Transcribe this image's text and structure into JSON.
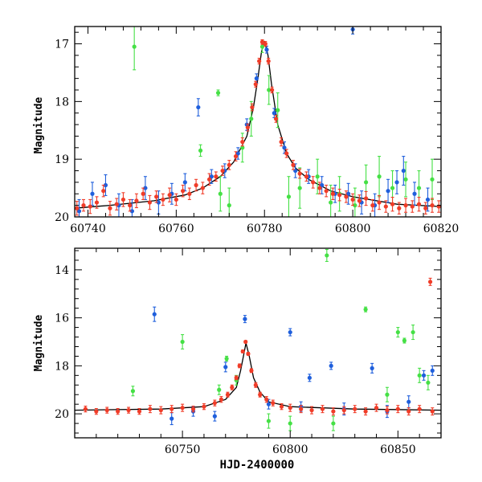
{
  "figure": {
    "xlabel": "HJD-2400000"
  },
  "colors": {
    "red": "#f03c28",
    "blue": "#1f5fdc",
    "green": "#45e045",
    "model": "#000000"
  },
  "chart_data": [
    {
      "type": "scatter",
      "panel": "top",
      "ylabel": "Magnitude",
      "xlabel": "",
      "xlim": [
        60737,
        60820
      ],
      "ylim": [
        20.0,
        16.7
      ],
      "y_inverted": true,
      "xticks": [
        60740,
        60760,
        60780,
        60800,
        60820
      ],
      "yticks": [
        17,
        18,
        19,
        20
      ],
      "model": {
        "x": [
          60737,
          60745,
          60755,
          60762,
          60766,
          60770,
          60773,
          60776,
          60777.5,
          60778.5,
          60779.3,
          60780,
          60780.8,
          60781.6,
          60783,
          60785,
          60787,
          60790,
          60795,
          60800,
          60810,
          60820
        ],
        "y": [
          19.85,
          19.8,
          19.72,
          19.62,
          19.5,
          19.3,
          19.05,
          18.6,
          18.1,
          17.6,
          17.15,
          16.95,
          17.2,
          17.7,
          18.4,
          18.9,
          19.15,
          19.35,
          19.55,
          19.65,
          19.78,
          19.82
        ]
      },
      "series": [
        {
          "name": "red",
          "points": [
            [
              60737.5,
              19.85,
              0.12
            ],
            [
              60739,
              19.8,
              0.1
            ],
            [
              60740.5,
              19.82,
              0.12
            ],
            [
              60742,
              19.75,
              0.1
            ],
            [
              60743.5,
              19.55,
              0.1
            ],
            [
              60745,
              19.85,
              0.12
            ],
            [
              60746.5,
              19.78,
              0.1
            ],
            [
              60748,
              19.7,
              0.12
            ],
            [
              60749.5,
              19.8,
              0.1
            ],
            [
              60751,
              19.72,
              0.12
            ],
            [
              60752.5,
              19.6,
              0.1
            ],
            [
              60754,
              19.75,
              0.12
            ],
            [
              60755.5,
              19.65,
              0.1
            ],
            [
              60757,
              19.7,
              0.1
            ],
            [
              60758.5,
              19.62,
              0.12
            ],
            [
              60760,
              19.7,
              0.1
            ],
            [
              60761.5,
              19.55,
              0.1
            ],
            [
              60763,
              19.6,
              0.1
            ],
            [
              60764.5,
              19.45,
              0.1
            ],
            [
              60766,
              19.5,
              0.1
            ],
            [
              60767.5,
              19.35,
              0.1
            ],
            [
              60769,
              19.3,
              0.08
            ],
            [
              60770.5,
              19.2,
              0.08
            ],
            [
              60772,
              19.1,
              0.08
            ],
            [
              60773.5,
              18.95,
              0.08
            ],
            [
              60775,
              18.7,
              0.07
            ],
            [
              60776.2,
              18.45,
              0.06
            ],
            [
              60777.2,
              18.1,
              0.06
            ],
            [
              60778,
              17.7,
              0.05
            ],
            [
              60778.8,
              17.3,
              0.05
            ],
            [
              60779.5,
              16.97,
              0.04
            ],
            [
              60780.2,
              17.0,
              0.04
            ],
            [
              60780.9,
              17.3,
              0.05
            ],
            [
              60781.7,
              17.8,
              0.05
            ],
            [
              60782.6,
              18.3,
              0.06
            ],
            [
              60783.8,
              18.7,
              0.07
            ],
            [
              60785,
              18.9,
              0.07
            ],
            [
              60786.5,
              19.1,
              0.08
            ],
            [
              60788,
              19.25,
              0.08
            ],
            [
              60789.5,
              19.3,
              0.08
            ],
            [
              60791,
              19.4,
              0.1
            ],
            [
              60792.5,
              19.5,
              0.1
            ],
            [
              60794,
              19.55,
              0.1
            ],
            [
              60795.5,
              19.6,
              0.1
            ],
            [
              60797,
              19.62,
              0.1
            ],
            [
              60798.5,
              19.65,
              0.1
            ],
            [
              60800,
              19.7,
              0.1
            ],
            [
              60801.5,
              19.72,
              0.1
            ],
            [
              60803,
              19.68,
              0.12
            ],
            [
              60804.5,
              19.8,
              0.1
            ],
            [
              60806,
              19.75,
              0.12
            ],
            [
              60807.5,
              19.82,
              0.1
            ],
            [
              60809,
              19.78,
              0.12
            ],
            [
              60810.5,
              19.85,
              0.1
            ],
            [
              60812,
              19.8,
              0.12
            ],
            [
              60813.5,
              19.82,
              0.1
            ],
            [
              60815,
              19.78,
              0.12
            ],
            [
              60816.5,
              19.85,
              0.1
            ],
            [
              60818,
              19.8,
              0.12
            ],
            [
              60819.5,
              19.82,
              0.1
            ]
          ]
        },
        {
          "name": "blue",
          "points": [
            [
              60738,
              19.9,
              0.2
            ],
            [
              60741,
              19.6,
              0.2
            ],
            [
              60744,
              19.45,
              0.18
            ],
            [
              60747,
              19.8,
              0.2
            ],
            [
              60750,
              19.9,
              0.2
            ],
            [
              60753,
              19.5,
              0.2
            ],
            [
              60756,
              19.75,
              0.2
            ],
            [
              60759,
              19.6,
              0.18
            ],
            [
              60762,
              19.4,
              0.15
            ],
            [
              60765,
              18.1,
              0.15
            ],
            [
              60768,
              19.3,
              0.12
            ],
            [
              60771,
              19.2,
              0.12
            ],
            [
              60774,
              18.9,
              0.1
            ],
            [
              60776,
              18.4,
              0.1
            ],
            [
              60778.2,
              17.6,
              0.08
            ],
            [
              60780.5,
              17.1,
              0.06
            ],
            [
              60782.2,
              18.2,
              0.08
            ],
            [
              60784.5,
              18.8,
              0.1
            ],
            [
              60787,
              19.2,
              0.12
            ],
            [
              60790,
              19.3,
              0.12
            ],
            [
              60793,
              19.45,
              0.15
            ],
            [
              60796,
              19.6,
              0.15
            ],
            [
              60799,
              19.6,
              0.18
            ],
            [
              60802,
              19.75,
              0.2
            ],
            [
              60805,
              19.8,
              0.2
            ],
            [
              60808,
              19.55,
              0.2
            ],
            [
              60810,
              19.4,
              0.2
            ],
            [
              60811.5,
              19.2,
              0.25
            ],
            [
              60814,
              19.6,
              0.2
            ],
            [
              60817,
              19.7,
              0.2
            ],
            [
              60800,
              16.75,
              0.08
            ]
          ]
        },
        {
          "name": "green",
          "points": [
            [
              60750.5,
              17.05,
              0.4
            ],
            [
              60765.5,
              18.85,
              0.1
            ],
            [
              60769.5,
              17.85,
              0.05
            ],
            [
              60770,
              19.6,
              0.3
            ],
            [
              60772,
              19.8,
              0.3
            ],
            [
              60775,
              18.8,
              0.25
            ],
            [
              60777,
              18.3,
              0.3
            ],
            [
              60779.5,
              17.05,
              0.1
            ],
            [
              60781,
              17.8,
              0.25
            ],
            [
              60783,
              18.15,
              0.3
            ],
            [
              60785.5,
              19.65,
              0.35
            ],
            [
              60788,
              19.5,
              0.35
            ],
            [
              60792,
              19.3,
              0.3
            ],
            [
              60795,
              19.75,
              0.3
            ],
            [
              60797,
              19.6,
              0.3
            ],
            [
              60800.5,
              19.8,
              0.3
            ],
            [
              60803,
              19.4,
              0.3
            ],
            [
              60806,
              19.3,
              0.35
            ],
            [
              60809,
              19.5,
              0.3
            ],
            [
              60812,
              19.35,
              0.3
            ],
            [
              60815,
              19.5,
              0.3
            ],
            [
              60818,
              19.35,
              0.35
            ]
          ]
        }
      ]
    },
    {
      "type": "scatter",
      "panel": "bottom",
      "ylabel": "Magnitude",
      "xlabel": "HJD-2400000",
      "xlim": [
        60700,
        60870
      ],
      "ylim": [
        21.0,
        13.1
      ],
      "y_inverted": true,
      "xticks": [
        60750,
        60800,
        60850
      ],
      "yticks": [
        14,
        16,
        18,
        20
      ],
      "model": {
        "x": [
          60700,
          60740,
          60760,
          60770,
          60775,
          60777,
          60778.5,
          60779.5,
          60781,
          60783,
          60786,
          60790,
          60800,
          60830,
          60870
        ],
        "y": [
          19.85,
          19.8,
          19.7,
          19.4,
          18.9,
          18.2,
          17.5,
          17.05,
          17.6,
          18.5,
          19.1,
          19.5,
          19.7,
          19.8,
          19.85
        ]
      },
      "series": [
        {
          "name": "red",
          "points": [
            [
              60705,
              19.8,
              0.12
            ],
            [
              60710,
              19.9,
              0.12
            ],
            [
              60715,
              19.85,
              0.12
            ],
            [
              60720,
              19.9,
              0.12
            ],
            [
              60725,
              19.85,
              0.12
            ],
            [
              60730,
              19.9,
              0.12
            ],
            [
              60735,
              19.8,
              0.15
            ],
            [
              60740,
              19.85,
              0.15
            ],
            [
              60745,
              19.8,
              0.15
            ],
            [
              60750,
              19.75,
              0.15
            ],
            [
              60755,
              19.8,
              0.12
            ],
            [
              60760,
              19.7,
              0.12
            ],
            [
              60765,
              19.55,
              0.12
            ],
            [
              60768,
              19.4,
              0.12
            ],
            [
              60771,
              19.2,
              0.1
            ],
            [
              60773,
              18.9,
              0.1
            ],
            [
              60775,
              18.5,
              0.08
            ],
            [
              60776.5,
              18.0,
              0.08
            ],
            [
              60778,
              17.4,
              0.06
            ],
            [
              60779.3,
              17.0,
              0.05
            ],
            [
              60780.5,
              17.5,
              0.06
            ],
            [
              60782,
              18.2,
              0.08
            ],
            [
              60784,
              18.8,
              0.1
            ],
            [
              60786,
              19.2,
              0.1
            ],
            [
              60789,
              19.4,
              0.12
            ],
            [
              60792,
              19.55,
              0.12
            ],
            [
              60796,
              19.7,
              0.12
            ],
            [
              60800,
              19.75,
              0.15
            ],
            [
              60805,
              19.8,
              0.15
            ],
            [
              60810,
              19.85,
              0.15
            ],
            [
              60815,
              19.8,
              0.15
            ],
            [
              60820,
              19.9,
              0.15
            ],
            [
              60825,
              19.85,
              0.15
            ],
            [
              60830,
              19.8,
              0.15
            ],
            [
              60835,
              19.9,
              0.15
            ],
            [
              60840,
              19.75,
              0.15
            ],
            [
              60845,
              19.85,
              0.15
            ],
            [
              60850,
              19.8,
              0.15
            ],
            [
              60855,
              19.9,
              0.15
            ],
            [
              60860,
              19.8,
              0.15
            ],
            [
              60865,
              14.5,
              0.15
            ],
            [
              60866,
              19.9,
              0.15
            ]
          ]
        },
        {
          "name": "blue",
          "points": [
            [
              60737,
              15.85,
              0.3
            ],
            [
              60770,
              18.05,
              0.2
            ],
            [
              60779,
              16.05,
              0.15
            ],
            [
              60800,
              16.6,
              0.15
            ],
            [
              60809,
              18.5,
              0.15
            ],
            [
              60819,
              18.0,
              0.15
            ],
            [
              60838,
              18.1,
              0.2
            ],
            [
              60862,
              18.4,
              0.2
            ],
            [
              60866,
              18.2,
              0.2
            ],
            [
              60745,
              20.2,
              0.25
            ],
            [
              60755,
              19.9,
              0.2
            ],
            [
              60765,
              20.1,
              0.2
            ],
            [
              60790,
              19.6,
              0.2
            ],
            [
              60805,
              19.7,
              0.2
            ],
            [
              60825,
              19.8,
              0.25
            ],
            [
              60845,
              19.9,
              0.25
            ],
            [
              60855,
              19.5,
              0.25
            ]
          ]
        },
        {
          "name": "green",
          "points": [
            [
              60727,
              19.05,
              0.2
            ],
            [
              60750,
              17.0,
              0.3
            ],
            [
              60767,
              19.0,
              0.2
            ],
            [
              60770.5,
              17.7,
              0.1
            ],
            [
              60775,
              18.6,
              0.2
            ],
            [
              60790,
              20.3,
              0.3
            ],
            [
              60800,
              20.4,
              0.3
            ],
            [
              60817,
              13.4,
              0.25
            ],
            [
              60835,
              15.65,
              0.1
            ],
            [
              60850,
              16.6,
              0.2
            ],
            [
              60853,
              16.95,
              0.1
            ],
            [
              60857,
              16.6,
              0.3
            ],
            [
              60860,
              18.4,
              0.3
            ],
            [
              60864,
              18.7,
              0.3
            ],
            [
              60820,
              20.4,
              0.3
            ],
            [
              60845,
              19.2,
              0.3
            ]
          ]
        }
      ]
    }
  ]
}
